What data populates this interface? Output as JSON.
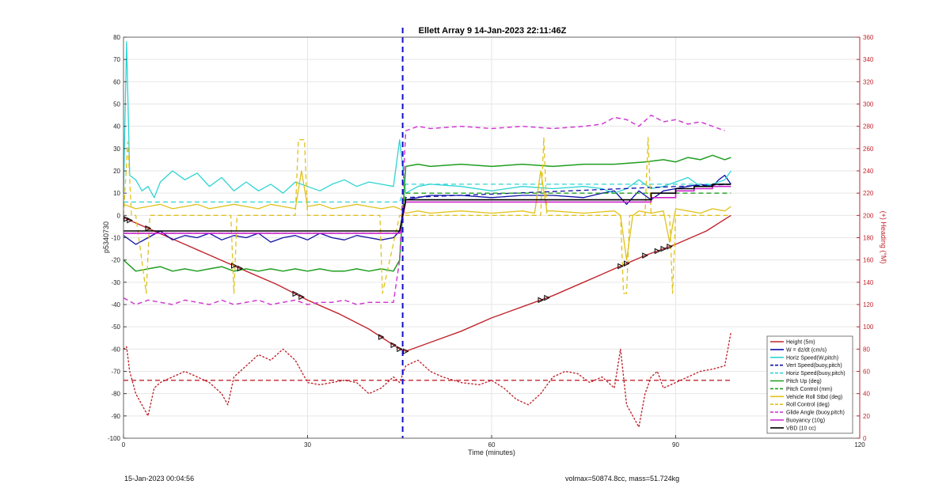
{
  "chart_data": {
    "type": "line",
    "title": "Ellett Array 9 14-Jan-2023 22:11:46Z",
    "xlabel": "Time (minutes)",
    "ylabel": "p5340730",
    "ylabel_right": "(+) Heading (°M)",
    "xlim": [
      0,
      120
    ],
    "ylim": [
      -100,
      80
    ],
    "ylim_right": [
      0,
      360
    ],
    "x_ticks": [
      0,
      30,
      60,
      90,
      120
    ],
    "y_ticks": [
      80,
      70,
      60,
      50,
      40,
      30,
      20,
      10,
      0,
      -10,
      -20,
      -30,
      -40,
      -50,
      -60,
      -70,
      -80,
      -90,
      -100
    ],
    "y_right_ticks": [
      360,
      340,
      320,
      300,
      280,
      260,
      240,
      220,
      200,
      180,
      160,
      140,
      120,
      100,
      80,
      60,
      40,
      20,
      0
    ],
    "grid": true,
    "legend_position": "bottom-right",
    "vertical_marker_x": 45.5,
    "series": [
      {
        "name": "Height (5m)",
        "color": "#c0262e",
        "style": "solid",
        "width": 1.4,
        "x": [
          0,
          5,
          10,
          15,
          20,
          25,
          30,
          35,
          40,
          45,
          46,
          50,
          55,
          60,
          65,
          70,
          75,
          80,
          85,
          90,
          95,
          99
        ],
        "y": [
          -1,
          -7,
          -13,
          -19,
          -25,
          -31,
          -38,
          -44,
          -51,
          -60,
          -61,
          -57,
          -52,
          -46,
          -41,
          -36,
          -30,
          -24,
          -18,
          -13,
          -7,
          0
        ]
      },
      {
        "name": "W = dz/dt (cm/s)",
        "color": "#1010a8",
        "style": "solid",
        "width": 1.3,
        "x": [
          0,
          2,
          4,
          6,
          8,
          10,
          12,
          14,
          16,
          18,
          20,
          22,
          24,
          26,
          28,
          30,
          32,
          34,
          36,
          38,
          40,
          42,
          44,
          45,
          46,
          48,
          50,
          55,
          60,
          65,
          70,
          75,
          78,
          80,
          82,
          84,
          86,
          88,
          90,
          92,
          94,
          96,
          97,
          98,
          99
        ],
        "y": [
          -9,
          -13,
          -10,
          -7,
          -11,
          -9,
          -10,
          -8,
          -11,
          -9,
          -10,
          -8,
          -12,
          -10,
          -9,
          -11,
          -8,
          -10,
          -11,
          -9,
          -10,
          -11,
          -10,
          -7,
          7,
          8,
          9,
          9,
          8,
          9,
          9,
          8,
          10,
          11,
          5,
          11,
          7,
          11,
          12,
          13,
          14,
          13,
          16,
          18,
          14
        ]
      },
      {
        "name": "Horiz Speed(W,pitch)",
        "color": "#2ed4d4",
        "style": "solid",
        "width": 1.3,
        "x": [
          0,
          0.5,
          1,
          2,
          3,
          4,
          5,
          6,
          8,
          10,
          12,
          14,
          16,
          18,
          20,
          22,
          24,
          26,
          28,
          30,
          32,
          34,
          36,
          38,
          40,
          42,
          44,
          45,
          46,
          48,
          50,
          55,
          60,
          65,
          70,
          75,
          78,
          80,
          82,
          84,
          86,
          88,
          90,
          92,
          94,
          96,
          98,
          99
        ],
        "y": [
          10,
          78,
          18,
          16,
          11,
          13,
          8,
          15,
          20,
          16,
          19,
          13,
          17,
          11,
          15,
          11,
          14,
          10,
          15,
          13,
          11,
          14,
          16,
          13,
          15,
          14,
          13,
          34,
          10,
          13,
          14,
          13,
          11,
          13,
          12,
          13,
          12,
          10,
          12,
          16,
          12,
          13,
          15,
          17,
          13,
          14,
          16,
          20
        ]
      },
      {
        "name": "Vert Speed(buoy,pitch)",
        "color": "#1010a8",
        "style": "dashed",
        "width": 1.3,
        "x": [
          0,
          45,
          46,
          99
        ],
        "y": [
          -8,
          -8,
          8,
          14
        ]
      },
      {
        "name": "Horiz Speed(buoy,pitch)",
        "color": "#2ed4d4",
        "style": "dashed",
        "width": 1.3,
        "x": [
          0,
          45,
          46,
          99
        ],
        "y": [
          6,
          6,
          14,
          14
        ]
      },
      {
        "name": "Pitch Up (deg)",
        "color": "#1f9e1f",
        "style": "solid",
        "width": 1.5,
        "x": [
          0,
          2,
          4,
          6,
          8,
          10,
          12,
          14,
          16,
          18,
          20,
          22,
          24,
          26,
          28,
          30,
          32,
          34,
          36,
          38,
          40,
          42,
          44,
          45,
          46,
          48,
          50,
          55,
          60,
          65,
          70,
          75,
          80,
          85,
          88,
          90,
          92,
          94,
          96,
          98,
          99
        ],
        "y": [
          -20,
          -25,
          -24,
          -23,
          -25,
          -24,
          -25,
          -24,
          -23,
          -25,
          -24,
          -25,
          -24,
          -25,
          -24,
          -25,
          -24,
          -25,
          -25,
          -24,
          -25,
          -24,
          -25,
          -20,
          22,
          23,
          22,
          23,
          22,
          23,
          22,
          23,
          23,
          24,
          25,
          24,
          26,
          25,
          27,
          25,
          26
        ]
      },
      {
        "name": "Pitch Control (mm)",
        "color": "#1f9e1f",
        "style": "dashed",
        "width": 1.3,
        "x": [
          0,
          45,
          46,
          80,
          85,
          99
        ],
        "y": [
          -8,
          -8,
          10,
          10,
          10,
          10
        ]
      },
      {
        "name": "Vehicle Roll Stbd (deg)",
        "color": "#e0c21c",
        "style": "solid",
        "width": 1.3,
        "x": [
          0,
          2,
          4,
          6,
          8,
          10,
          12,
          14,
          16,
          18,
          20,
          22,
          24,
          26,
          28,
          29,
          30,
          32,
          34,
          36,
          38,
          40,
          42,
          44,
          45,
          46,
          48,
          50,
          55,
          60,
          65,
          67,
          68,
          69,
          70,
          75,
          80,
          81,
          82,
          83,
          84,
          86,
          88,
          89,
          90,
          92,
          94,
          96,
          98,
          99
        ],
        "y": [
          5,
          3,
          4,
          5,
          3,
          4,
          5,
          3,
          4,
          5,
          4,
          3,
          5,
          4,
          3,
          20,
          4,
          5,
          3,
          4,
          5,
          4,
          3,
          4,
          3,
          1,
          2,
          1,
          2,
          1,
          2,
          1,
          20,
          2,
          2,
          1,
          2,
          0,
          -20,
          0,
          2,
          1,
          2,
          -12,
          3,
          2,
          1,
          3,
          2,
          4
        ]
      },
      {
        "name": "Roll Control (deg)",
        "color": "#e0c21c",
        "style": "dashed",
        "width": 1.3,
        "x": [
          0,
          0.7,
          1.3,
          2,
          3.7,
          4.3,
          5,
          17.5,
          18,
          18.5,
          28,
          28.5,
          29.5,
          30,
          41.8,
          42.2,
          45,
          46,
          68,
          68.5,
          69,
          81,
          81.5,
          82,
          82.5,
          85,
          85.5,
          86,
          89,
          89.5,
          90,
          99
        ],
        "y": [
          0,
          33,
          0,
          0,
          -35,
          0,
          0,
          0,
          -35,
          0,
          0,
          34,
          34,
          0,
          0,
          -35,
          0,
          0,
          0,
          35,
          0,
          0,
          -35,
          -35,
          0,
          0,
          35,
          0,
          0,
          -35,
          0,
          0
        ]
      },
      {
        "name": "Glide Angle (buoy,pitch)",
        "color": "#d13cd1",
        "style": "dashed",
        "width": 1.5,
        "x": [
          0,
          2,
          4,
          6,
          8,
          10,
          12,
          14,
          16,
          18,
          20,
          22,
          24,
          26,
          28,
          30,
          32,
          34,
          36,
          38,
          40,
          42,
          44,
          45,
          46,
          48,
          50,
          55,
          60,
          65,
          70,
          75,
          78,
          80,
          82,
          84,
          86,
          88,
          90,
          92,
          94,
          96,
          98
        ],
        "y": [
          -37,
          -40,
          -38,
          -39,
          -40,
          -38,
          -39,
          -40,
          -38,
          -40,
          -39,
          -38,
          -40,
          -39,
          -38,
          -40,
          -39,
          -39,
          -38,
          -40,
          -39,
          -39,
          -39,
          -20,
          38,
          40,
          39,
          40,
          39,
          40,
          39,
          40,
          41,
          44,
          43,
          40,
          45,
          42,
          43,
          41,
          42,
          40,
          38
        ]
      },
      {
        "name": "Buoyancy (10g)",
        "color": "#cc22cc",
        "style": "solid",
        "width": 1.6,
        "x": [
          0,
          45,
          46,
          86,
          86,
          90,
          90,
          93,
          93,
          96,
          96,
          99
        ],
        "y": [
          -8,
          -8,
          6,
          6,
          8,
          8,
          11,
          11,
          12,
          12,
          13,
          13
        ]
      },
      {
        "name": "VBD (10 cc)",
        "color": "#000000",
        "style": "solid",
        "width": 1.6,
        "x": [
          0,
          45,
          46,
          86,
          86,
          90,
          90,
          93,
          93,
          96,
          96,
          99
        ],
        "y": [
          -7,
          -7,
          7,
          7,
          10,
          10,
          12,
          12,
          13,
          13,
          14,
          14
        ]
      },
      {
        "name": "",
        "color": "#c0262e",
        "style": "dotted",
        "width": 1.4,
        "axis": "right",
        "x": [
          0,
          0.5,
          1,
          2,
          3,
          4,
          5,
          6,
          8,
          10,
          12,
          14,
          16,
          17,
          18,
          20,
          22,
          24,
          26,
          27,
          28,
          30,
          32,
          34,
          36,
          38,
          40,
          42,
          44,
          45,
          46,
          48,
          50,
          52,
          55,
          58,
          60,
          62,
          64,
          66,
          68,
          70,
          72,
          74,
          76,
          78,
          80,
          81,
          82,
          83,
          84,
          85,
          86,
          87,
          88,
          90,
          92,
          94,
          96,
          98,
          99
        ],
        "y": [
          80,
          82,
          60,
          40,
          30,
          20,
          45,
          50,
          55,
          60,
          55,
          50,
          40,
          30,
          55,
          65,
          75,
          70,
          80,
          75,
          70,
          50,
          48,
          50,
          52,
          50,
          40,
          45,
          55,
          50,
          65,
          70,
          60,
          55,
          50,
          48,
          52,
          45,
          35,
          30,
          40,
          55,
          60,
          58,
          50,
          55,
          45,
          80,
          30,
          20,
          10,
          40,
          55,
          60,
          45,
          50,
          55,
          60,
          62,
          65,
          95
        ]
      },
      {
        "name": "",
        "color": "#c0262e",
        "style": "dashed",
        "width": 1.3,
        "axis": "right",
        "x": [
          0,
          99
        ],
        "y": [
          52,
          52
        ]
      }
    ],
    "marker_times": [
      0.5,
      1,
      4,
      18,
      19,
      28,
      29,
      42,
      44,
      45,
      46,
      68,
      69,
      81,
      82,
      85,
      87,
      88,
      89
    ]
  },
  "footer": {
    "left": "15-Jan-2023 00:04:56",
    "right": "volmax=50874.8cc, mass=51.724kg"
  }
}
